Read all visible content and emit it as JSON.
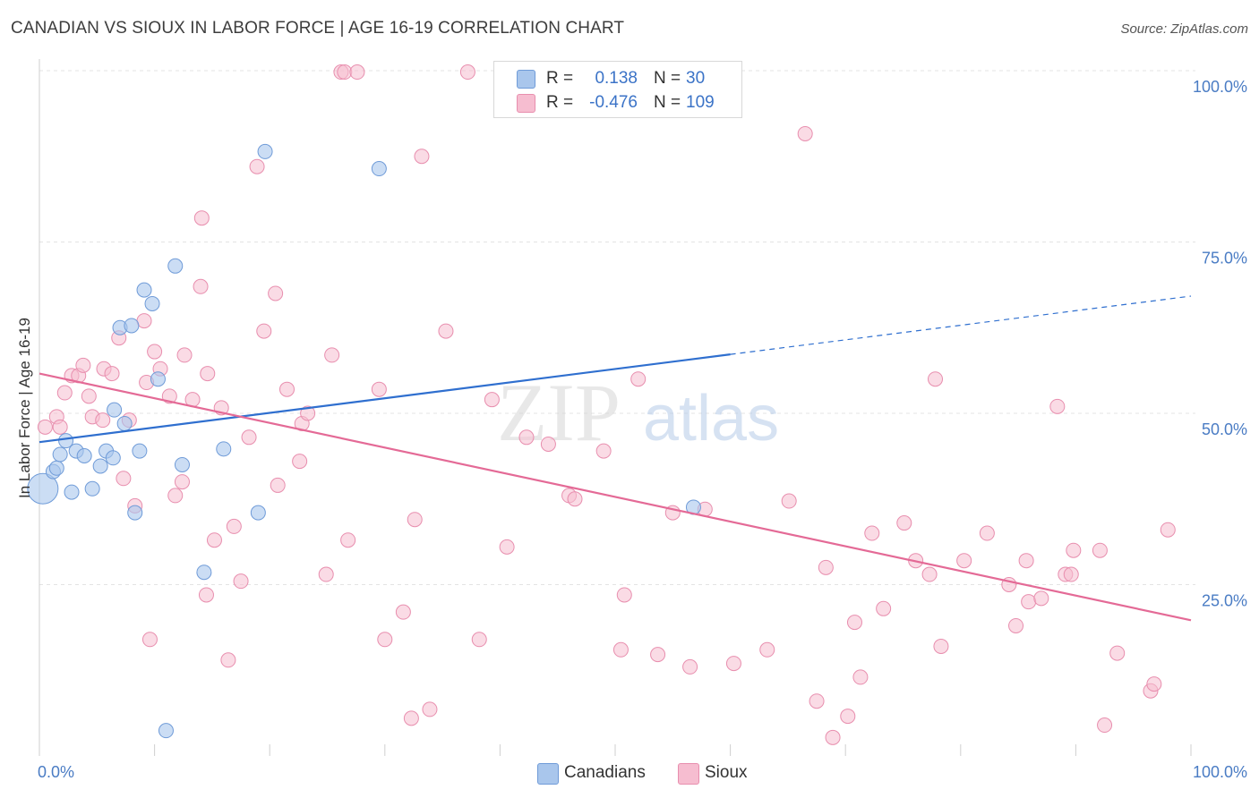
{
  "title": "CANADIAN VS SIOUX IN LABOR FORCE | AGE 16-19 CORRELATION CHART",
  "source": "Source: ZipAtlas.com",
  "legend": {
    "rows": [
      {
        "r_label": "R =",
        "r_value": "0.138",
        "n_label": "N =",
        "n_value": "30"
      },
      {
        "r_label": "R =",
        "r_value": "-0.476",
        "n_label": "N =",
        "n_value": "109"
      }
    ]
  },
  "bottom_legend": [
    "Canadians",
    "Sioux"
  ],
  "watermark": {
    "zip": "ZIP",
    "atlas": "atlas"
  },
  "colors": {
    "canadians_fill": "#a9c6ec",
    "canadians_stroke": "#6f9bd8",
    "canadians_line": "#2f6fcf",
    "sioux_fill": "#f6bdd0",
    "sioux_stroke": "#e88eae",
    "sioux_line": "#e46a96",
    "tick_label": "#4a7cc4",
    "grid": "#e3e3e3"
  },
  "chart_data": {
    "type": "scatter",
    "xlabel": "",
    "ylabel": "In Labor Force | Age 16-19",
    "xlim": [
      0,
      100
    ],
    "ylim": [
      0,
      103
    ],
    "x_tick_labels": [
      "0.0%",
      "100.0%"
    ],
    "y_tick_labels": [
      "100.0%",
      "75.0%",
      "50.0%",
      "25.0%"
    ],
    "y_ticks": [
      100,
      75,
      50,
      25
    ],
    "grid": "horizontal dashed",
    "series": [
      {
        "name": "Canadians",
        "r": 0.138,
        "n": 30,
        "trend": {
          "x0": 0,
          "y0": 45.8,
          "x1": 60,
          "y1": 58.6,
          "dashed_to_x": 100,
          "dashed_to_y": 67.1
        },
        "points": [
          [
            0.3,
            39.0,
            "large"
          ],
          [
            1.2,
            41.5
          ],
          [
            1.5,
            42.0
          ],
          [
            1.8,
            44.0
          ],
          [
            2.3,
            46.0
          ],
          [
            2.8,
            38.5
          ],
          [
            3.2,
            44.5
          ],
          [
            3.9,
            43.8
          ],
          [
            4.6,
            39.0
          ],
          [
            5.3,
            42.3
          ],
          [
            5.8,
            44.5
          ],
          [
            6.5,
            50.5
          ],
          [
            6.4,
            43.5
          ],
          [
            7.0,
            62.5
          ],
          [
            7.4,
            48.5
          ],
          [
            8.0,
            62.8
          ],
          [
            8.3,
            35.5
          ],
          [
            8.7,
            44.5
          ],
          [
            9.1,
            68.0
          ],
          [
            9.8,
            66.0
          ],
          [
            10.3,
            55.0
          ],
          [
            11.8,
            71.5
          ],
          [
            12.4,
            42.5
          ],
          [
            14.3,
            26.8
          ],
          [
            16.0,
            44.8
          ],
          [
            19.0,
            35.5
          ],
          [
            19.6,
            88.2
          ],
          [
            29.5,
            85.7
          ],
          [
            56.8,
            36.3
          ],
          [
            11.0,
            3.7
          ]
        ]
      },
      {
        "name": "Sioux",
        "r": -0.476,
        "n": 109,
        "trend": {
          "x0": 0,
          "y0": 55.8,
          "x1": 100,
          "y1": 19.8
        },
        "points": [
          [
            0.5,
            48.0
          ],
          [
            1.5,
            49.5
          ],
          [
            1.8,
            48.0
          ],
          [
            2.2,
            53.0
          ],
          [
            2.8,
            55.5
          ],
          [
            3.4,
            55.5
          ],
          [
            3.8,
            57.0
          ],
          [
            4.3,
            52.5
          ],
          [
            4.6,
            49.5
          ],
          [
            5.5,
            49.0
          ],
          [
            5.6,
            56.5
          ],
          [
            6.3,
            55.8
          ],
          [
            6.9,
            61.0
          ],
          [
            7.3,
            40.5
          ],
          [
            7.8,
            49.0
          ],
          [
            8.3,
            36.5
          ],
          [
            9.1,
            63.5
          ],
          [
            9.3,
            54.5
          ],
          [
            10.0,
            59.0
          ],
          [
            10.5,
            56.5
          ],
          [
            11.3,
            52.5
          ],
          [
            11.8,
            38.0
          ],
          [
            12.4,
            40.0
          ],
          [
            12.6,
            58.5
          ],
          [
            13.3,
            52.0
          ],
          [
            14.0,
            68.5
          ],
          [
            14.1,
            78.5
          ],
          [
            14.6,
            55.8
          ],
          [
            15.2,
            31.5
          ],
          [
            15.8,
            50.8
          ],
          [
            16.4,
            14.0
          ],
          [
            16.9,
            33.5
          ],
          [
            17.5,
            25.5
          ],
          [
            18.2,
            46.5
          ],
          [
            18.9,
            86.0
          ],
          [
            19.5,
            62.0
          ],
          [
            20.5,
            67.5
          ],
          [
            20.7,
            39.5
          ],
          [
            21.5,
            53.5
          ],
          [
            22.6,
            43.0
          ],
          [
            22.8,
            48.5
          ],
          [
            23.3,
            50.0
          ],
          [
            24.9,
            26.5
          ],
          [
            25.4,
            58.5
          ],
          [
            26.2,
            99.8
          ],
          [
            26.5,
            99.8
          ],
          [
            26.8,
            31.5
          ],
          [
            27.6,
            99.8
          ],
          [
            29.5,
            53.5
          ],
          [
            30.0,
            17.0
          ],
          [
            31.6,
            21.0
          ],
          [
            32.6,
            34.5
          ],
          [
            33.2,
            87.5
          ],
          [
            33.9,
            6.8
          ],
          [
            35.3,
            62.0
          ],
          [
            37.2,
            99.8
          ],
          [
            38.2,
            17.0
          ],
          [
            39.3,
            52.0
          ],
          [
            40.6,
            30.5
          ],
          [
            42.3,
            46.5
          ],
          [
            44.2,
            45.5
          ],
          [
            45.3,
            99.8
          ],
          [
            46.0,
            38.0
          ],
          [
            46.5,
            37.5
          ],
          [
            49.0,
            44.5
          ],
          [
            50.5,
            15.5
          ],
          [
            50.8,
            23.5
          ],
          [
            52.0,
            55.0
          ],
          [
            53.7,
            14.8
          ],
          [
            55.0,
            35.5
          ],
          [
            56.5,
            13.0
          ],
          [
            57.8,
            36.0
          ],
          [
            60.3,
            13.5
          ],
          [
            63.2,
            15.5
          ],
          [
            65.1,
            37.2
          ],
          [
            66.5,
            90.8
          ],
          [
            67.5,
            8.0
          ],
          [
            68.3,
            27.5
          ],
          [
            68.9,
            2.7
          ],
          [
            70.2,
            5.8
          ],
          [
            70.8,
            19.5
          ],
          [
            71.3,
            11.5
          ],
          [
            72.3,
            32.5
          ],
          [
            73.3,
            21.5
          ],
          [
            75.1,
            34.0
          ],
          [
            76.1,
            28.5
          ],
          [
            77.3,
            26.5
          ],
          [
            77.8,
            55.0
          ],
          [
            78.3,
            16.0
          ],
          [
            80.3,
            28.5
          ],
          [
            82.3,
            32.5
          ],
          [
            84.2,
            25.0
          ],
          [
            84.8,
            19.0
          ],
          [
            85.7,
            28.5
          ],
          [
            85.9,
            22.5
          ],
          [
            87.0,
            23.0
          ],
          [
            88.4,
            51.0
          ],
          [
            89.1,
            26.5
          ],
          [
            89.6,
            26.5
          ],
          [
            89.8,
            30.0
          ],
          [
            92.1,
            30.0
          ],
          [
            92.5,
            4.5
          ],
          [
            93.6,
            15.0
          ],
          [
            96.5,
            9.5
          ],
          [
            96.8,
            10.5
          ],
          [
            98.0,
            33.0
          ],
          [
            14.5,
            23.5
          ],
          [
            9.6,
            17.0
          ],
          [
            32.3,
            5.5
          ]
        ]
      }
    ]
  }
}
